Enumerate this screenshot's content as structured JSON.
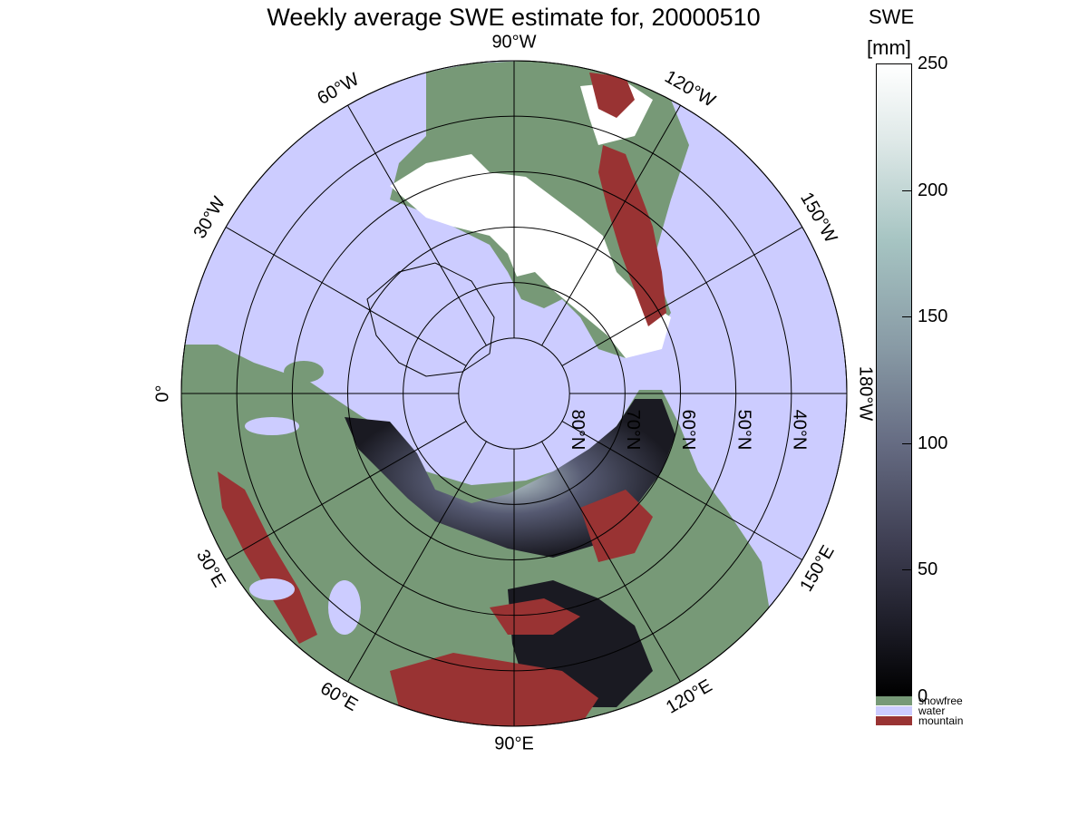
{
  "map": {
    "title": "Weekly average SWE estimate for, 20000510",
    "longitude_labels": [
      {
        "value": "90°W",
        "angle_deg": 90
      },
      {
        "value": "120°W",
        "angle_deg": 60
      },
      {
        "value": "150°W",
        "angle_deg": 30
      },
      {
        "value": "180°W",
        "angle_deg": 0
      },
      {
        "value": "150°E",
        "angle_deg": -30
      },
      {
        "value": "120°E",
        "angle_deg": -60
      },
      {
        "value": "90°E",
        "angle_deg": -90
      },
      {
        "value": "60°E",
        "angle_deg": -120
      },
      {
        "value": "30°E",
        "angle_deg": -150
      },
      {
        "value": "0°",
        "angle_deg": 180
      },
      {
        "value": "30°W",
        "angle_deg": 150
      },
      {
        "value": "60°W",
        "angle_deg": 120
      }
    ],
    "latitude_labels": [
      "80°N",
      "70°N",
      "60°N",
      "50°N",
      "40°N"
    ],
    "latitude_circles_deg": [
      80,
      70,
      60,
      50,
      40,
      30
    ],
    "colors": {
      "water": "#ccccff",
      "snowfree": "#779977",
      "mountain": "#993333",
      "snow_white": "#ffffff",
      "snow_low": "#1a1a22",
      "snow_mid": "#565a72",
      "snow_high": "#b8cacc"
    }
  },
  "colorbar": {
    "title_line1": "SWE",
    "title_line2": "[mm]",
    "ticks": [
      "250",
      "200",
      "150",
      "100",
      "50",
      "0"
    ],
    "tick_values": [
      250,
      200,
      150,
      100,
      50,
      0
    ],
    "range": [
      0,
      250
    ],
    "categories": [
      {
        "label": "snowfree",
        "color": "#779977"
      },
      {
        "label": "water",
        "color": "#ccccff"
      },
      {
        "label": "mountain",
        "color": "#993333"
      }
    ]
  }
}
